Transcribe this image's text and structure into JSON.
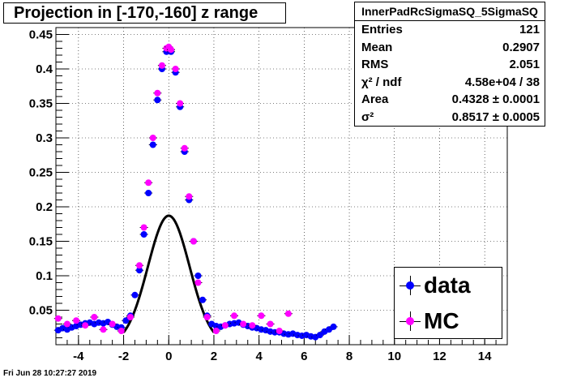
{
  "title": "Projection in [-170,-160] z range",
  "footer": "Fri Jun 28 10:27:27 2019",
  "stats": {
    "name": "InnerPadRcSigmaSQ_5SigmaSQ",
    "rows": [
      {
        "label": "Entries",
        "value": "121"
      },
      {
        "label": "Mean",
        "value": "0.2907"
      },
      {
        "label": "RMS",
        "value": "2.051"
      },
      {
        "label": "χ² / ndf",
        "value": "4.58e+04 / 38"
      },
      {
        "label": "Area",
        "value": "0.4328 ± 0.0001"
      },
      {
        "label": "σ²",
        "value": "0.8517 ± 0.0005"
      }
    ]
  },
  "legend": [
    {
      "label": "data",
      "color": "#0000ff"
    },
    {
      "label": "MC",
      "color": "#ff00ff"
    }
  ],
  "chart_data": {
    "type": "scatter",
    "title": "Projection in [-170,-160] z range",
    "xlim": [
      -5,
      15
    ],
    "ylim": [
      0,
      0.46
    ],
    "xticks": [
      -4,
      -2,
      0,
      2,
      4,
      6,
      8,
      10,
      12,
      14
    ],
    "yticks": [
      0.05,
      0.1,
      0.15,
      0.2,
      0.25,
      0.3,
      0.35,
      0.4,
      0.45
    ],
    "ytick_labels": [
      "0.05",
      "0.1",
      "0.15",
      "0.2",
      "0.25",
      "0.3",
      "0.35",
      "0.4",
      "0.45"
    ],
    "grid": true,
    "series": [
      {
        "name": "data",
        "color": "#0000ff",
        "x": [
          -4.9,
          -4.7,
          -4.5,
          -4.3,
          -4.1,
          -3.9,
          -3.7,
          -3.5,
          -3.3,
          -3.1,
          -2.9,
          -2.7,
          -2.5,
          -2.3,
          -2.1,
          -1.9,
          -1.7,
          -1.5,
          -1.3,
          -1.1,
          -0.9,
          -0.7,
          -0.5,
          -0.3,
          -0.1,
          0.1,
          0.3,
          0.5,
          0.7,
          0.9,
          1.1,
          1.3,
          1.5,
          1.7,
          1.9,
          2.1,
          2.3,
          2.5,
          2.7,
          2.9,
          3.1,
          3.3,
          3.5,
          3.7,
          3.9,
          4.1,
          4.3,
          4.5,
          4.7,
          4.9,
          5.1,
          5.3,
          5.5,
          5.7,
          5.9,
          6.1,
          6.3,
          6.5,
          6.7,
          6.9,
          7.1,
          7.3
        ],
        "y": [
          0.021,
          0.024,
          0.022,
          0.025,
          0.027,
          0.029,
          0.031,
          0.032,
          0.03,
          0.032,
          0.031,
          0.033,
          0.029,
          0.026,
          0.025,
          0.035,
          0.042,
          0.072,
          0.108,
          0.16,
          0.22,
          0.29,
          0.355,
          0.4,
          0.425,
          0.425,
          0.395,
          0.345,
          0.28,
          0.21,
          0.15,
          0.1,
          0.065,
          0.042,
          0.03,
          0.027,
          0.026,
          0.028,
          0.03,
          0.031,
          0.032,
          0.029,
          0.027,
          0.025,
          0.024,
          0.022,
          0.021,
          0.019,
          0.018,
          0.018,
          0.016,
          0.015,
          0.016,
          0.014,
          0.013,
          0.014,
          0.012,
          0.011,
          0.014,
          0.019,
          0.022,
          0.026
        ]
      },
      {
        "name": "MC",
        "color": "#ff00ff",
        "x": [
          -4.9,
          -4.5,
          -4.1,
          -3.7,
          -3.3,
          -2.9,
          -2.5,
          -2.1,
          -1.7,
          -1.3,
          -1.1,
          -0.9,
          -0.7,
          -0.5,
          -0.3,
          -0.1,
          0.0,
          0.1,
          0.3,
          0.5,
          0.7,
          0.9,
          1.1,
          1.3,
          1.7,
          2.1,
          2.5,
          2.9,
          3.3,
          3.7,
          4.1,
          4.5,
          4.9,
          5.3
        ],
        "y": [
          0.038,
          0.03,
          0.035,
          0.028,
          0.04,
          0.022,
          0.03,
          0.02,
          0.04,
          0.115,
          0.17,
          0.235,
          0.3,
          0.365,
          0.405,
          0.43,
          0.432,
          0.428,
          0.4,
          0.35,
          0.285,
          0.215,
          0.15,
          0.09,
          0.04,
          0.02,
          0.028,
          0.042,
          0.03,
          0.028,
          0.042,
          0.03,
          0.02,
          0.045
        ]
      }
    ],
    "fit": {
      "type": "gaussian",
      "area": 0.4328,
      "sigma2": 0.8517,
      "mean": 0.0,
      "range": [
        -2.0,
        2.0
      ],
      "color": "#000000"
    }
  }
}
